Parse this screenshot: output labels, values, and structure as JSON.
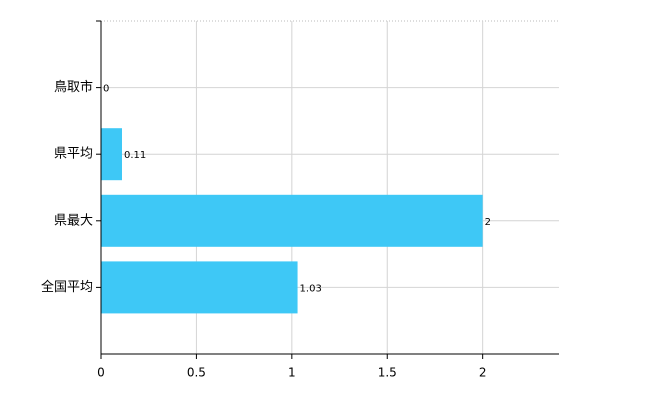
{
  "chart_data": {
    "type": "bar",
    "orientation": "horizontal",
    "categories": [
      "鳥取市",
      "県平均",
      "県最大",
      "全国平均"
    ],
    "values": [
      0,
      0.11,
      2,
      1.03
    ],
    "color": "#3ec8f6",
    "xlim": [
      0,
      2.4
    ],
    "xticks": [
      0,
      0.5,
      1,
      1.5,
      2
    ],
    "grid": true
  }
}
